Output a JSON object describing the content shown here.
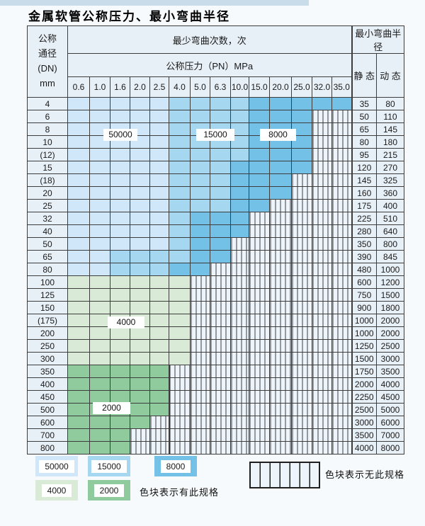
{
  "title": "金属软管公称压力、最小弯曲半径",
  "table": {
    "corner_lines": [
      "公称",
      "通径",
      "(DN)",
      "mm"
    ],
    "bend_cycles_header": "最少弯曲次数，次",
    "pressure_header": "公称压力（PN）MPa",
    "radius_header": "最小弯曲半径",
    "static_label": "静 态",
    "dynamic_label": "动 态",
    "pressures": [
      "0.6",
      "1.0",
      "1.6",
      "2.0",
      "2.5",
      "4.0",
      "5.0",
      "6.3",
      "10.0",
      "15.0",
      "20.0",
      "25.0",
      "32.0",
      "35.0"
    ],
    "cycle_codes": {
      "A": "50000",
      "B": "15000",
      "C": "8000",
      "D": "4000",
      "E": "2000",
      "X": "无此规格"
    },
    "rows": [
      {
        "dn": "4",
        "pattern": "AAAAABBBBCCCCC",
        "static": "35",
        "dynamic": "80"
      },
      {
        "dn": "6",
        "pattern": "AAAAABBBBCCCXX",
        "static": "50",
        "dynamic": "110"
      },
      {
        "dn": "8",
        "pattern": "AAAAABBBBCCCXX",
        "static": "65",
        "dynamic": "145"
      },
      {
        "dn": "10",
        "pattern": "AAAAABBBBCCCXX",
        "static": "80",
        "dynamic": "180"
      },
      {
        "dn": "(12)",
        "pattern": "AAAAABBBBCCCXX",
        "static": "95",
        "dynamic": "215"
      },
      {
        "dn": "15",
        "pattern": "AAAAABBBCCCCXX",
        "static": "120",
        "dynamic": "270"
      },
      {
        "dn": "(18)",
        "pattern": "AAAAABBBCCCXXX",
        "static": "145",
        "dynamic": "325"
      },
      {
        "dn": "20",
        "pattern": "AAAAABBBCCCXXX",
        "static": "160",
        "dynamic": "360"
      },
      {
        "dn": "25",
        "pattern": "AAAAABBBCCXXXX",
        "static": "175",
        "dynamic": "400"
      },
      {
        "dn": "32",
        "pattern": "AAAAABCCCXXXXX",
        "static": "225",
        "dynamic": "510"
      },
      {
        "dn": "40",
        "pattern": "AAAAABCCCXXXXX",
        "static": "280",
        "dynamic": "640"
      },
      {
        "dn": "50",
        "pattern": "AAAAABCCXXXXXX",
        "static": "350",
        "dynamic": "800"
      },
      {
        "dn": "65",
        "pattern": "AABBBBCCXXXXXX",
        "static": "390",
        "dynamic": "845"
      },
      {
        "dn": "80",
        "pattern": "AABBBCCXXXXXXX",
        "static": "480",
        "dynamic": "1000"
      },
      {
        "dn": "100",
        "pattern": "DDDDDDXXXXXXXX",
        "static": "600",
        "dynamic": "1200"
      },
      {
        "dn": "125",
        "pattern": "DDDDDDXXXXXXXX",
        "static": "750",
        "dynamic": "1500"
      },
      {
        "dn": "150",
        "pattern": "DDDDDDXXXXXXXX",
        "static": "900",
        "dynamic": "1800"
      },
      {
        "dn": "(175)",
        "pattern": "DDDDDDXXXXXXXX",
        "static": "1000",
        "dynamic": "2000"
      },
      {
        "dn": "200",
        "pattern": "DDDDDDXXXXXXXX",
        "static": "1000",
        "dynamic": "2000"
      },
      {
        "dn": "250",
        "pattern": "DDDDDDXXXXXXXX",
        "static": "1250",
        "dynamic": "2500"
      },
      {
        "dn": "300",
        "pattern": "DDDDDDXXXXXXXX",
        "static": "1500",
        "dynamic": "3000"
      },
      {
        "dn": "350",
        "pattern": "EEEEEXXXXXXXXX",
        "static": "1750",
        "dynamic": "3500"
      },
      {
        "dn": "400",
        "pattern": "EEEEEXXXXXXXXX",
        "static": "2000",
        "dynamic": "4000"
      },
      {
        "dn": "450",
        "pattern": "EEEEEXXXXXXXXX",
        "static": "2250",
        "dynamic": "4500"
      },
      {
        "dn": "500",
        "pattern": "EEEEEXXXXXXXXX",
        "static": "2500",
        "dynamic": "5000"
      },
      {
        "dn": "600",
        "pattern": "EEEEXXXXXXXXXX",
        "static": "3000",
        "dynamic": "6000"
      },
      {
        "dn": "700",
        "pattern": "EEEXXXXXXXXXXX",
        "static": "3500",
        "dynamic": "7000"
      },
      {
        "dn": "800",
        "pattern": "EEEXXXXXXXXXXX",
        "static": "4000",
        "dynamic": "8000"
      }
    ]
  },
  "overlay_labels": [
    {
      "id": "ov-50000",
      "label": "50000"
    },
    {
      "id": "ov-15000",
      "label": "15000"
    },
    {
      "id": "ov-8000",
      "label": "8000"
    },
    {
      "id": "ov-4000",
      "label": "4000"
    },
    {
      "id": "ov-2000",
      "label": "2000"
    }
  ],
  "legend": {
    "items": [
      {
        "code": "A",
        "label": "50000"
      },
      {
        "code": "B",
        "label": "15000"
      },
      {
        "code": "C",
        "label": "8000"
      },
      {
        "code": "D",
        "label": "4000"
      },
      {
        "code": "E",
        "label": "2000"
      }
    ],
    "has_spec_text": "色块表示有此规格",
    "no_spec_text": "色块表示无此规格"
  },
  "colors": {
    "c50000": "#cfe7f8",
    "c15000": "#a6d7f0",
    "c8000": "#74c1e7",
    "c4000": "#d9ead6",
    "c2000": "#90cb9d",
    "hatch_bg": "#eef4fb",
    "header_bg": "#e8f0f7"
  }
}
